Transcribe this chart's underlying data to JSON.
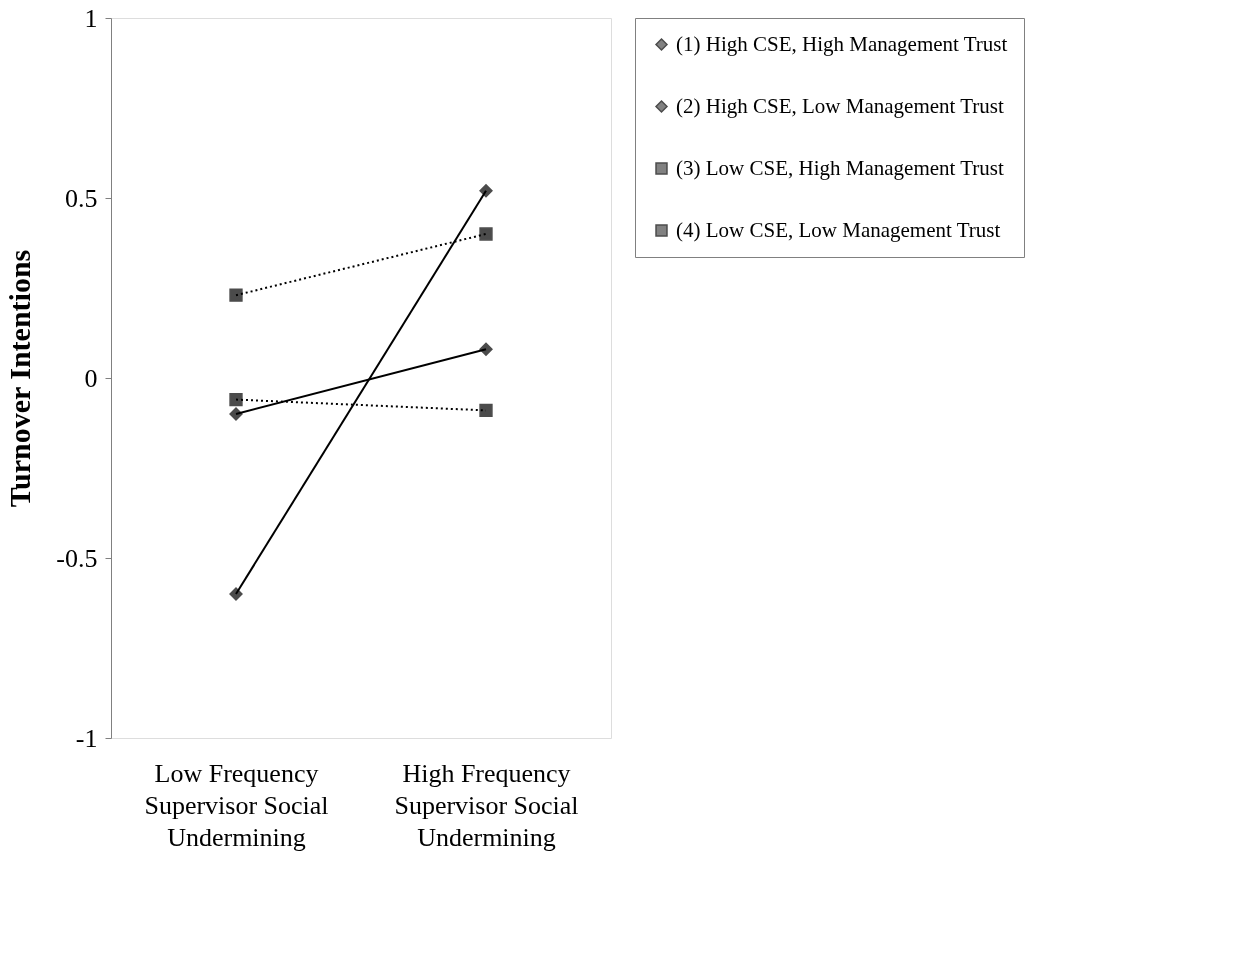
{
  "chart_data": {
    "type": "line",
    "ylabel": "Turnover Intentions",
    "categories": [
      "Low Frequency Supervisor Social Undermining",
      "High Frequency Supervisor Social Undermining"
    ],
    "series": [
      {
        "name": "(1) High CSE, High Management Trust",
        "color": "#000000",
        "marker": "diamond",
        "line_style": "solid",
        "values": [
          -0.6,
          0.52
        ]
      },
      {
        "name": "(2) High CSE, Low Management Trust",
        "color": "#000000",
        "marker": "diamond",
        "line_style": "solid",
        "values": [
          -0.1,
          0.08
        ]
      },
      {
        "name": "(3) Low CSE, High Management Trust",
        "color": "#000000",
        "marker": "square",
        "line_style": "dotted",
        "values": [
          -0.06,
          -0.09
        ]
      },
      {
        "name": "(4) Low CSE, Low Management Trust",
        "color": "#000000",
        "marker": "square",
        "line_style": "dotted",
        "values": [
          0.23,
          0.4
        ]
      }
    ],
    "ylim": [
      -1,
      1
    ],
    "yticks": [
      -1,
      -0.5,
      0,
      0.5,
      1
    ],
    "grid": false,
    "legend": "right"
  }
}
